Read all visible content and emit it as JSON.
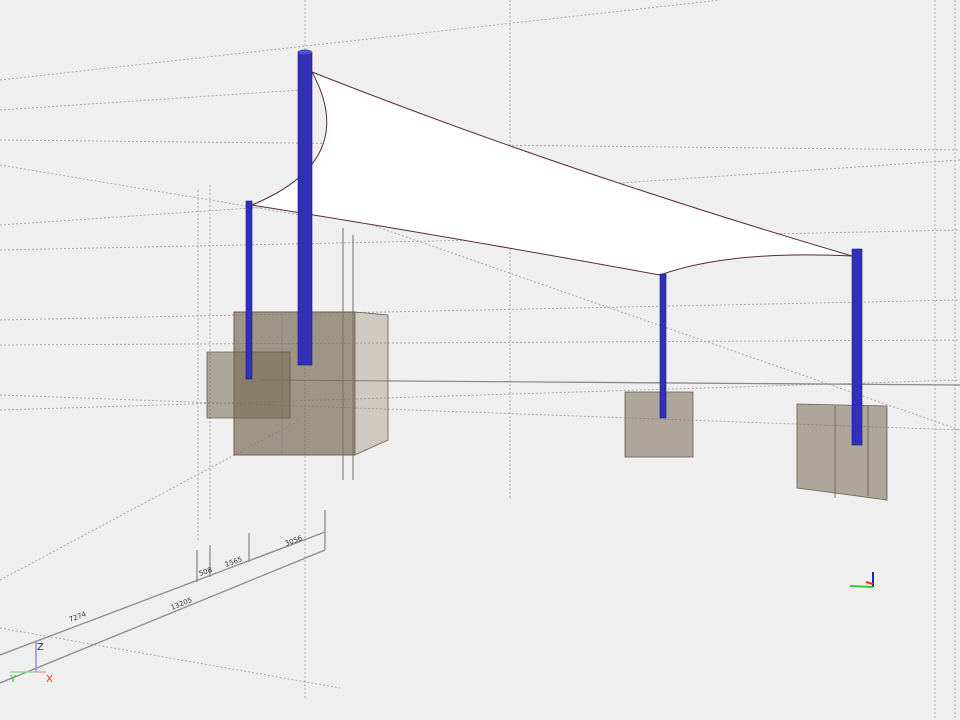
{
  "viewport": {
    "dimensions": {
      "d1": "7274",
      "d2": "13205",
      "d3": "508",
      "d4": "1565",
      "d5": "3056"
    },
    "axes": {
      "x": "X",
      "y": "Y",
      "z": "Z"
    },
    "colors": {
      "pole": "#3030b8",
      "membrane": "#ffffff",
      "footing": "#7a6a55",
      "background": "#efefef",
      "axis_x": "#e03030",
      "axis_y": "#30d030",
      "axis_z": "#2020d0"
    }
  }
}
